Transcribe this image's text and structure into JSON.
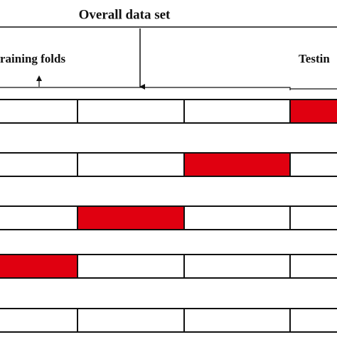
{
  "header": {
    "title": "Overall data set"
  },
  "labels": {
    "training": "raining folds",
    "testing": "Testin"
  }
}
